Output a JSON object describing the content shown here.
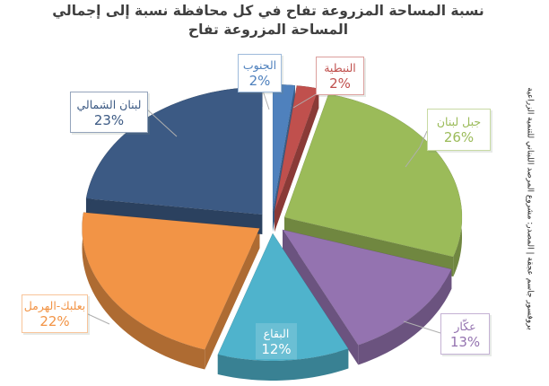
{
  "title": {
    "full": "نسبة المساحة المزروعة تفاح في كل محافظة نسبة إلى إجمالي المساحة المزروعة تفاح",
    "line1": "نسبة المساحة المزروعة تفاح في كل محافظة نسبة إلى إجمالي",
    "line2": "المساحة المزروعة تفاح",
    "color": "#3F3F3F"
  },
  "credit": {
    "text": "بروفسور جاسم عجقة | المصدر: مشروع المرصد اللبناني للتنمية الزراعية"
  },
  "chart_data": {
    "type": "pie",
    "style": "3d-exploded",
    "title": "نسبة المساحة المزروعة تفاح في كل محافظة نسبة إلى إجمالي المساحة المزروعة تفاح",
    "unit": "percent",
    "total": 100,
    "start_angle_deg": 0,
    "direction": "clockwise",
    "legend": "none",
    "slices": [
      {
        "key": "south",
        "label": "الجنوب",
        "value": 2,
        "color": "#4F81BD",
        "label_placement": "boxed-callout"
      },
      {
        "key": "nabatieh",
        "label": "النبطية",
        "value": 2,
        "color": "#C0504D",
        "label_placement": "boxed-callout"
      },
      {
        "key": "mount-lebanon",
        "label": "جبل لبنان",
        "value": 26,
        "color": "#9BBB59",
        "label_placement": "boxed-callout"
      },
      {
        "key": "akkar",
        "label": "عكّار",
        "value": 13,
        "color": "#9473B0",
        "label_placement": "boxed-callout"
      },
      {
        "key": "bekaa",
        "label": "البقاع",
        "value": 12,
        "color": "#4FB3CC",
        "label_placement": "on-slice",
        "text_color": "#FFFFFF"
      },
      {
        "key": "baalbek-hermel",
        "label": "بعلبك-الهرمل",
        "value": 22,
        "color": "#F29446",
        "label_placement": "boxed-callout"
      },
      {
        "key": "north-lebanon",
        "label": "لبنان الشمالي",
        "value": 23,
        "color": "#3C5A84",
        "label_placement": "boxed-callout"
      }
    ]
  }
}
